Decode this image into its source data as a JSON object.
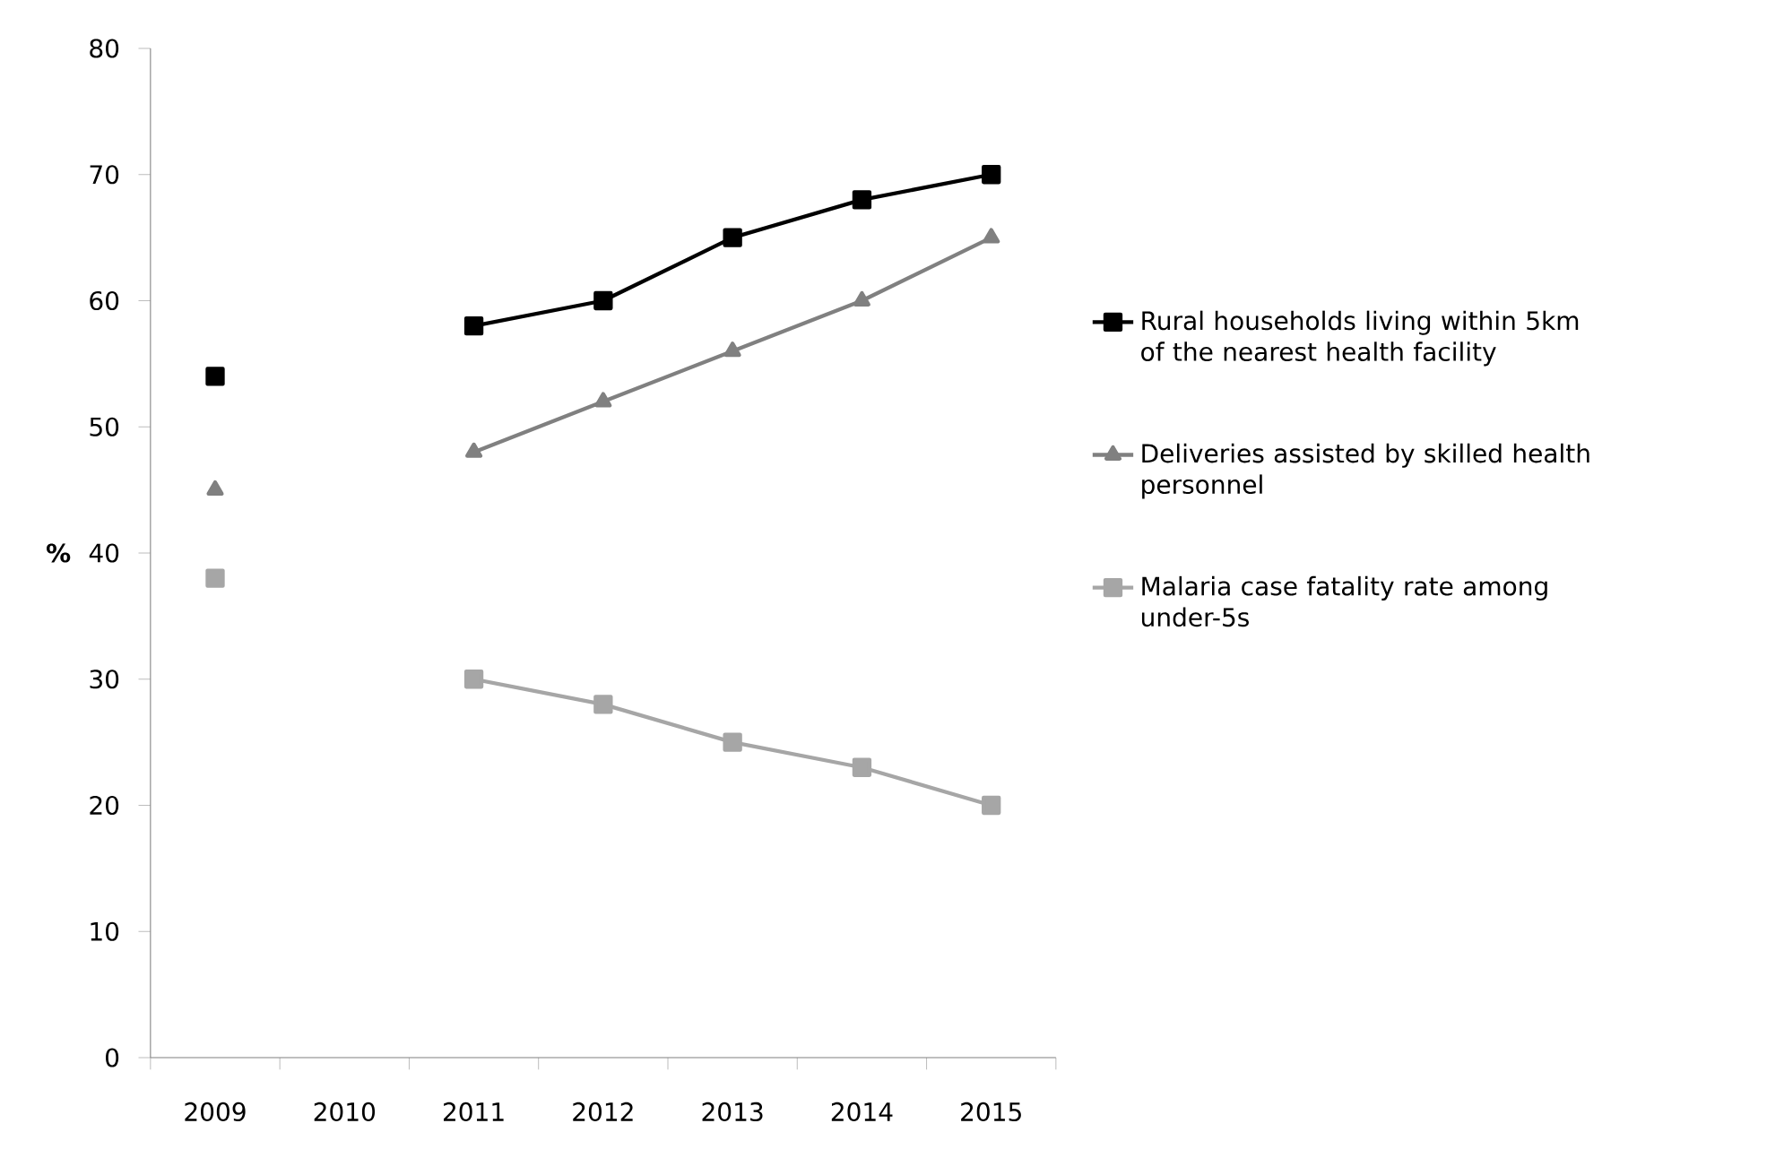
{
  "chart_data": {
    "type": "line",
    "ylabel": "%",
    "categories": [
      "2009",
      "2010",
      "2011",
      "2012",
      "2013",
      "2014",
      "2015"
    ],
    "series": [
      {
        "name": "Rural households living within 5km of the nearest health facility",
        "color": "#000000",
        "marker": "square",
        "values": [
          54,
          null,
          58,
          60,
          65,
          68,
          70
        ]
      },
      {
        "name": "Deliveries assisted by skilled health personnel",
        "color": "#808080",
        "marker": "triangle",
        "values": [
          45,
          null,
          48,
          52,
          56,
          60,
          65
        ]
      },
      {
        "name": "Malaria case fatality rate among under-5s",
        "color": "#a6a6a6",
        "marker": "square",
        "values": [
          38,
          null,
          30,
          28,
          25,
          23,
          20
        ]
      }
    ],
    "ylim": [
      0,
      80
    ],
    "yticks": [
      0,
      10,
      20,
      30,
      40,
      50,
      60,
      70,
      80
    ],
    "grid": false,
    "legend": "right",
    "line_style": "solid"
  }
}
